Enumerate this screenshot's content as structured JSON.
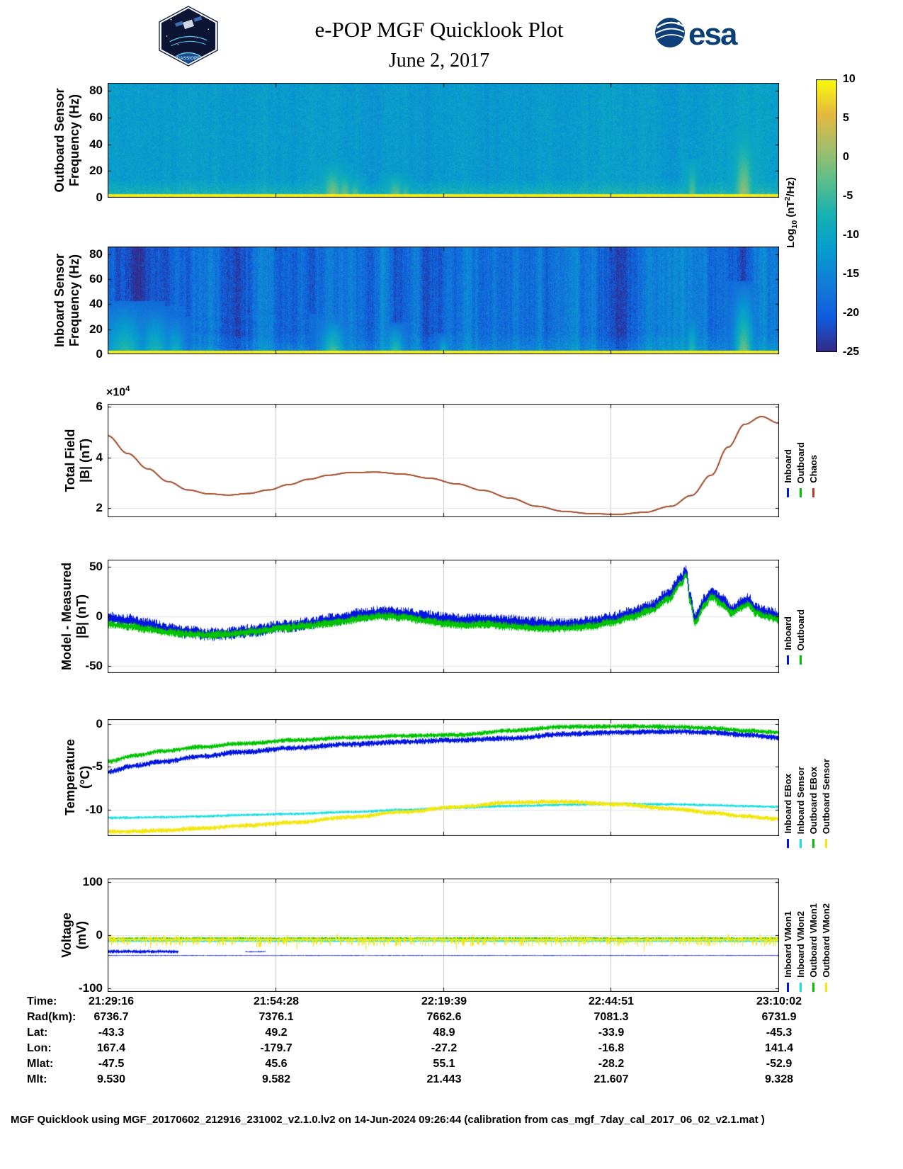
{
  "header": {
    "title": "e-POP MGF Quicklook Plot",
    "subtitle": "June 2, 2017",
    "cassiope_label": "CASSIOPE",
    "esa_label": "esa"
  },
  "colorbar": {
    "label_prefix": "Log",
    "label_sub": "10",
    "label_mid": " (nT",
    "label_sup": "2",
    "label_suffix": "/Hz)",
    "ticks": [
      10,
      5,
      0,
      -5,
      -10,
      -15,
      -20,
      -25
    ],
    "clim": [
      -25,
      10
    ]
  },
  "chart_data": [
    {
      "id": "outboard-spectrogram",
      "type": "heatmap",
      "ylabel1": "Outboard Sensor",
      "ylabel2": "Frequency (Hz)",
      "yticks": [
        0,
        20,
        40,
        60,
        80
      ],
      "ylim": [
        0,
        86
      ],
      "clim": [
        -25,
        10
      ],
      "heatmap": {
        "seed": 11,
        "base": -11.5,
        "noise": 2.4,
        "column_variation": 1.5,
        "low_frac": 0.16,
        "low_boost": 5,
        "bottom_frac": 0.035,
        "bottom_value": 9,
        "wave": false,
        "bursts": [
          {
            "x": 0.335,
            "w": 0.01,
            "h": 0.3,
            "v": 1
          },
          {
            "x": 0.352,
            "w": 0.007,
            "h": 0.24,
            "v": 0
          },
          {
            "x": 0.368,
            "w": 0.006,
            "h": 0.18,
            "v": -1
          },
          {
            "x": 0.428,
            "w": 0.008,
            "h": 0.22,
            "v": -1
          },
          {
            "x": 0.443,
            "w": 0.005,
            "h": 0.16,
            "v": -2
          },
          {
            "x": 0.5,
            "w": 0.004,
            "h": 0.12,
            "v": -3
          },
          {
            "x": 0.87,
            "w": 0.005,
            "h": 0.34,
            "v": -2
          },
          {
            "x": 0.947,
            "w": 0.009,
            "h": 0.6,
            "v": 1
          }
        ]
      }
    },
    {
      "id": "inboard-spectrogram",
      "type": "heatmap",
      "ylabel1": "Inboard Sensor",
      "ylabel2": "Frequency (Hz)",
      "yticks": [
        0,
        20,
        40,
        60,
        80
      ],
      "ylim": [
        0,
        86
      ],
      "clim": [
        -25,
        10
      ],
      "heatmap": {
        "seed": 22,
        "base": -18.5,
        "noise": 2.6,
        "column_variation": 5,
        "low_frac": 0.2,
        "low_boost": 4,
        "bottom_frac": 0.035,
        "bottom_value": 9,
        "wave": true,
        "bursts": [
          {
            "x": 0.025,
            "w": 0.02,
            "h": 0.5,
            "v": -5
          },
          {
            "x": 0.07,
            "w": 0.015,
            "h": 0.45,
            "v": -6
          },
          {
            "x": 0.1,
            "w": 0.01,
            "h": 0.35,
            "v": -7
          },
          {
            "x": 0.335,
            "w": 0.012,
            "h": 0.38,
            "v": -3
          },
          {
            "x": 0.428,
            "w": 0.009,
            "h": 0.3,
            "v": -4
          },
          {
            "x": 0.5,
            "w": 0.005,
            "h": 0.2,
            "v": -6
          },
          {
            "x": 0.87,
            "w": 0.006,
            "h": 0.42,
            "v": -5
          },
          {
            "x": 0.947,
            "w": 0.01,
            "h": 0.68,
            "v": -1
          }
        ]
      }
    },
    {
      "id": "total-field",
      "type": "line",
      "ylabel1": "Total Field",
      "ylabel2": "|B| (nT)",
      "yticks": [
        2,
        4,
        6
      ],
      "ylim": [
        1.65,
        6.1
      ],
      "exp_prefix": "×10",
      "exp_sup": "4",
      "y_unit": "1e4 nT",
      "x": [
        0,
        0.03,
        0.06,
        0.09,
        0.12,
        0.15,
        0.18,
        0.21,
        0.24,
        0.27,
        0.3,
        0.33,
        0.36,
        0.4,
        0.44,
        0.48,
        0.52,
        0.56,
        0.6,
        0.64,
        0.68,
        0.72,
        0.76,
        0.8,
        0.84,
        0.87,
        0.9,
        0.925,
        0.95,
        0.975,
        1.0
      ],
      "series": [
        {
          "name": "Inboard",
          "color": "#0016e0",
          "width": 1.4,
          "y": [
            4.85,
            4.15,
            3.55,
            3.05,
            2.72,
            2.57,
            2.52,
            2.58,
            2.72,
            2.93,
            3.14,
            3.3,
            3.4,
            3.42,
            3.34,
            3.18,
            2.96,
            2.7,
            2.4,
            2.08,
            1.88,
            1.79,
            1.76,
            1.84,
            2.08,
            2.5,
            3.3,
            4.4,
            5.3,
            5.6,
            5.35
          ]
        },
        {
          "name": "Outboard",
          "color": "#00c400",
          "width": 1.4,
          "y": [
            4.85,
            4.15,
            3.55,
            3.05,
            2.72,
            2.57,
            2.52,
            2.58,
            2.72,
            2.93,
            3.14,
            3.3,
            3.4,
            3.42,
            3.34,
            3.18,
            2.96,
            2.7,
            2.4,
            2.08,
            1.88,
            1.79,
            1.76,
            1.84,
            2.08,
            2.5,
            3.3,
            4.4,
            5.3,
            5.6,
            5.35
          ]
        },
        {
          "name": "Chaos",
          "color": "#bf3a1e",
          "width": 1.6,
          "y": [
            4.85,
            4.15,
            3.55,
            3.05,
            2.72,
            2.57,
            2.52,
            2.58,
            2.72,
            2.93,
            3.14,
            3.3,
            3.4,
            3.42,
            3.34,
            3.18,
            2.96,
            2.7,
            2.4,
            2.08,
            1.88,
            1.79,
            1.76,
            1.84,
            2.08,
            2.5,
            3.3,
            4.4,
            5.3,
            5.6,
            5.35
          ]
        }
      ],
      "legend": [
        {
          "label": "Inboard",
          "color": "#0016e0"
        },
        {
          "label": "Outboard",
          "color": "#00c400"
        },
        {
          "label": "Chaos",
          "color": "#bf3a1e"
        }
      ]
    },
    {
      "id": "model-measured",
      "type": "line",
      "ylabel1": "Model - Measured",
      "ylabel2": "|B| (nT)",
      "yticks": [
        -50,
        0,
        50
      ],
      "ylim": [
        -57,
        57
      ],
      "x": [
        0,
        0.03,
        0.06,
        0.09,
        0.12,
        0.15,
        0.18,
        0.22,
        0.26,
        0.3,
        0.34,
        0.38,
        0.41,
        0.44,
        0.47,
        0.5,
        0.53,
        0.56,
        0.6,
        0.64,
        0.68,
        0.72,
        0.75,
        0.78,
        0.81,
        0.835,
        0.855,
        0.862,
        0.868,
        0.875,
        0.89,
        0.9,
        0.915,
        0.93,
        0.945,
        0.955,
        0.965,
        0.98,
        1.0
      ],
      "series": [
        {
          "name": "Inboard",
          "color": "#0016e0",
          "render": "band",
          "amp": 7,
          "seed": 41,
          "y": [
            -2,
            -4,
            -8,
            -13,
            -16,
            -18,
            -17,
            -14,
            -10,
            -7,
            -3,
            2,
            4,
            3,
            0,
            -2,
            -4,
            -3,
            -5,
            -7,
            -8,
            -6,
            -2,
            3,
            10,
            22,
            38,
            46,
            20,
            -2,
            16,
            25,
            17,
            7,
            13,
            17,
            8,
            4,
            1
          ]
        },
        {
          "name": "Outboard",
          "color": "#00c400",
          "render": "band",
          "amp": 4.5,
          "seed": 42,
          "y": [
            -8,
            -10,
            -13,
            -16,
            -18,
            -19,
            -18,
            -15,
            -12,
            -9,
            -6,
            -2,
            0,
            -1,
            -4,
            -7,
            -9,
            -8,
            -10,
            -12,
            -12,
            -10,
            -6,
            -1,
            6,
            17,
            33,
            41,
            15,
            -6,
            11,
            20,
            12,
            3,
            9,
            12,
            4,
            0,
            -3
          ]
        }
      ],
      "legend": [
        {
          "label": "Inboard",
          "color": "#0016e0"
        },
        {
          "label": "Outboard",
          "color": "#00c400"
        }
      ]
    },
    {
      "id": "temperature",
      "type": "line",
      "ylabel1": "Temperature",
      "ylabel2": "(°C)",
      "yticks": [
        0,
        -5,
        -10
      ],
      "ylim": [
        -13.1,
        0.55
      ],
      "x": [
        0,
        0.04,
        0.08,
        0.14,
        0.2,
        0.28,
        0.36,
        0.44,
        0.52,
        0.6,
        0.68,
        0.76,
        0.84,
        0.9,
        0.95,
        1.0
      ],
      "series": [
        {
          "name": "Inboard EBox",
          "color": "#0016e0",
          "render": "band",
          "amp": 0.35,
          "seed": 51,
          "y": [
            -5.6,
            -4.9,
            -4.4,
            -3.8,
            -3.3,
            -2.8,
            -2.4,
            -2.1,
            -1.9,
            -1.7,
            -1.2,
            -1.0,
            -0.9,
            -1.0,
            -1.3,
            -1.6
          ]
        },
        {
          "name": "Outboard EBox",
          "color": "#00c400",
          "render": "band",
          "amp": 0.3,
          "seed": 52,
          "y": [
            -4.4,
            -3.7,
            -3.2,
            -2.7,
            -2.3,
            -1.9,
            -1.6,
            -1.4,
            -1.3,
            -0.8,
            -0.35,
            -0.3,
            -0.35,
            -0.5,
            -0.8,
            -1.0
          ]
        },
        {
          "name": "Inboard Sensor",
          "color": "#17dfe4",
          "render": "band",
          "amp": 0.18,
          "seed": 53,
          "y": [
            -11.0,
            -10.95,
            -10.9,
            -10.8,
            -10.65,
            -10.5,
            -10.3,
            -10.05,
            -9.8,
            -9.6,
            -9.45,
            -9.35,
            -9.4,
            -9.5,
            -9.6,
            -9.7
          ]
        },
        {
          "name": "Outboard Sensor",
          "color": "#f2e70c",
          "render": "band",
          "amp": 0.3,
          "seed": 54,
          "y": [
            -12.6,
            -12.55,
            -12.45,
            -12.2,
            -11.9,
            -11.5,
            -10.9,
            -10.3,
            -9.7,
            -9.2,
            -9.1,
            -9.4,
            -9.9,
            -10.4,
            -10.8,
            -11.1
          ]
        }
      ],
      "legend": [
        {
          "label": "Inboard EBox",
          "color": "#0016e0"
        },
        {
          "label": "Inboard Sensor",
          "color": "#17dfe4"
        },
        {
          "label": "Outboard EBox",
          "color": "#00c400"
        },
        {
          "label": "Outboard Sensor",
          "color": "#f2e70c"
        }
      ]
    },
    {
      "id": "voltage",
      "type": "line",
      "ylabel1": "Voltage",
      "ylabel2": "(mV)",
      "yticks": [
        -100,
        0,
        100
      ],
      "ylim": [
        -106,
        106
      ],
      "x": [
        0,
        1
      ],
      "series": [
        {
          "name": "Inboard VMon2",
          "color": "#17dfe4",
          "render": "band",
          "baseline": -11,
          "amp": 2,
          "seed": 61
        },
        {
          "name": "Outboard VMon1",
          "color": "#00c400",
          "render": "band",
          "baseline": -6,
          "amp": 2.5,
          "seed": 62
        },
        {
          "name": "Outboard VMon2",
          "color": "#f2e70c",
          "render": "band",
          "baseline": -7,
          "amp": 9,
          "spiky": true,
          "seed": 63
        },
        {
          "name": "Inboard VMon1",
          "color": "#0016e0",
          "render": "band",
          "baseline": -38,
          "amp": 0.8,
          "seed": 64,
          "segments": [
            {
              "x0": 0,
              "x1": 0.105,
              "y": -30.5,
              "amp": 3.5,
              "seed": 65
            },
            {
              "x0": 0.205,
              "x1": 0.235,
              "y": -31,
              "amp": 1.2,
              "seed": 66
            }
          ]
        }
      ],
      "legend": [
        {
          "label": "Inboard VMon1",
          "color": "#0016e0"
        },
        {
          "label": "Inboard VMon2",
          "color": "#17dfe4"
        },
        {
          "label": "Outboard VMon1",
          "color": "#00c400"
        },
        {
          "label": "Outboard VMon2",
          "color": "#f2e70c"
        }
      ]
    }
  ],
  "ephemeris": {
    "rows": [
      {
        "label": "Time:",
        "values": [
          "21:29:16",
          "21:54:28",
          "22:19:39",
          "22:44:51",
          "23:10:02"
        ]
      },
      {
        "label": "Rad(km):",
        "values": [
          "6736.7",
          "7376.1",
          "7662.6",
          "7081.3",
          "6731.9"
        ]
      },
      {
        "label": "Lat:",
        "values": [
          "-43.3",
          "49.2",
          "48.9",
          "-33.9",
          "-45.3"
        ]
      },
      {
        "label": "Lon:",
        "values": [
          "167.4",
          "-179.7",
          "-27.2",
          "-16.8",
          "141.4"
        ]
      },
      {
        "label": "Mlat:",
        "values": [
          "-47.5",
          "45.6",
          "55.1",
          "-28.2",
          "-52.9"
        ]
      },
      {
        "label": "Mlt:",
        "values": [
          "9.530",
          "9.582",
          "21.443",
          "21.607",
          "9.328"
        ]
      }
    ]
  },
  "footer": "MGF Quicklook using MGF_20170602_212916_231002_v2.1.0.lv2 on 14-Jun-2024 09:26:44 (calibration from cas_mgf_7day_cal_2017_06_02_v2.1.mat )"
}
